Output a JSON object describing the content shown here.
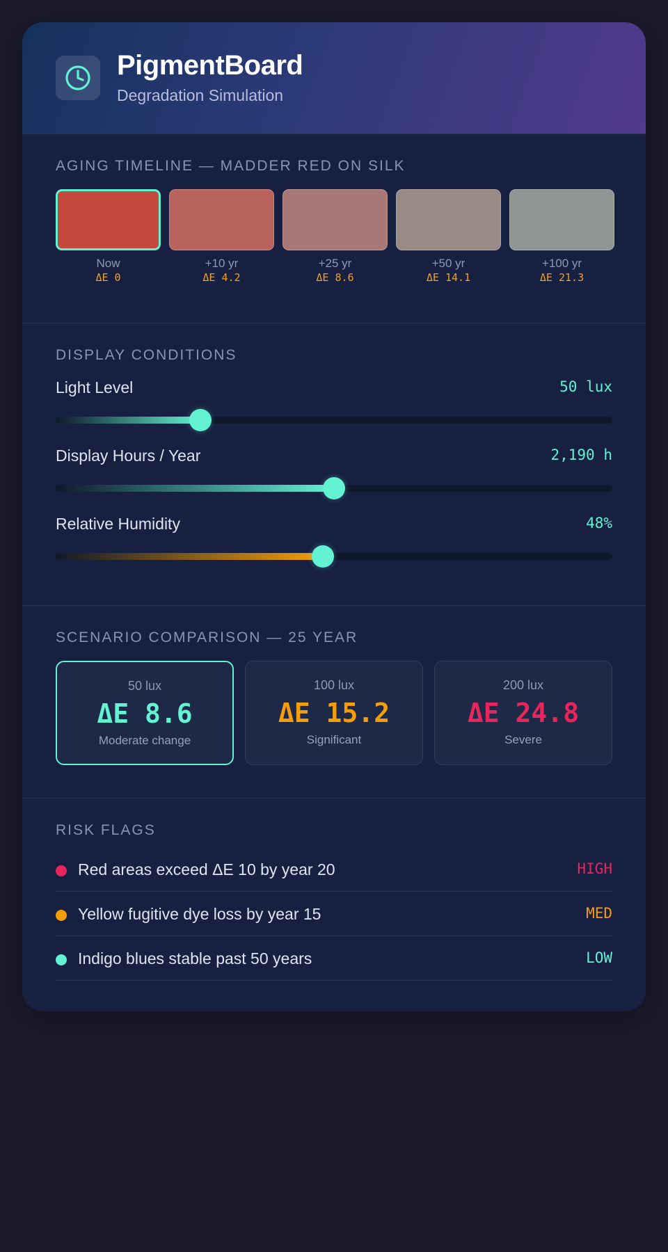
{
  "app": {
    "title": "PigmentBoard",
    "subtitle": "Degradation Simulation",
    "icon": "clock-icon"
  },
  "timeline": {
    "title": "AGING TIMELINE — MADDER RED ON SILK",
    "items": [
      {
        "label": "Now",
        "delta": "ΔE 0",
        "color": "#c44a3e",
        "selected": true
      },
      {
        "label": "+10 yr",
        "delta": "ΔE 4.2",
        "color": "#b8645c",
        "selected": false
      },
      {
        "label": "+25 yr",
        "delta": "ΔE 8.6",
        "color": "#a87876",
        "selected": false
      },
      {
        "label": "+50 yr",
        "delta": "ΔE 14.1",
        "color": "#998a86",
        "selected": false
      },
      {
        "label": "+100 yr",
        "delta": "ΔE 21.3",
        "color": "#8f9592",
        "selected": false
      }
    ]
  },
  "conditions": {
    "title": "DISPLAY CONDITIONS",
    "sliders": [
      {
        "label": "Light Level",
        "value": "50 lux",
        "fraction": 0.26,
        "color": "#63f2d2"
      },
      {
        "label": "Display Hours / Year",
        "value": "2,190 h",
        "fraction": 0.5,
        "color": "#63f2d2"
      },
      {
        "label": "Relative Humidity",
        "value": "48%",
        "fraction": 0.48,
        "color": "#f59e0b"
      }
    ]
  },
  "scenarios": {
    "title": "SCENARIO COMPARISON — 25 YEAR",
    "cards": [
      {
        "lux": "50 lux",
        "delta": "ΔE 8.6",
        "status": "Moderate change",
        "color": "#63f2d2",
        "selected": true
      },
      {
        "lux": "100 lux",
        "delta": "ΔE 15.2",
        "status": "Significant",
        "color": "#f59e0b",
        "selected": false
      },
      {
        "lux": "200 lux",
        "delta": "ΔE 24.8",
        "status": "Severe",
        "color": "#e8265e",
        "selected": false
      }
    ]
  },
  "risks": {
    "title": "RISK FLAGS",
    "items": [
      {
        "text": "Red areas exceed ΔE 10 by year 20",
        "level": "HIGH",
        "color": "#e8265e"
      },
      {
        "text": "Yellow fugitive dye loss by year 15",
        "level": "MED",
        "color": "#f59e0b"
      },
      {
        "text": "Indigo blues stable past 50 years",
        "level": "LOW",
        "color": "#63f2d2"
      }
    ]
  }
}
